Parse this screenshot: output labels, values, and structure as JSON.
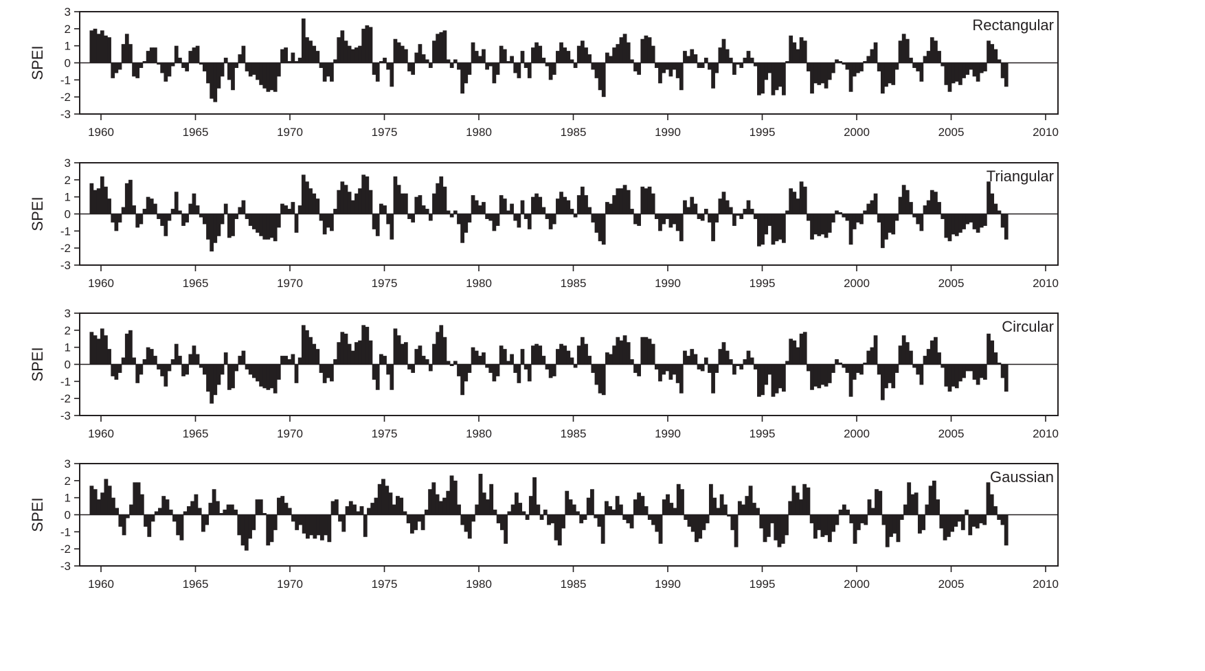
{
  "figure": {
    "ylabel": "SPEI",
    "yticks": [
      "3",
      "2",
      "1",
      "0",
      "-1",
      "-2",
      "-3"
    ],
    "xticks": [
      "1960",
      "1965",
      "1970",
      "1975",
      "1980",
      "1985",
      "1990",
      "1995",
      "2000",
      "2005",
      "2010"
    ],
    "colors": {
      "bars": "#231f20",
      "axes": "#231f20",
      "background": "#ffffff"
    }
  },
  "chart_data": [
    {
      "type": "bar",
      "title": "Rectangular",
      "xlabel": "",
      "ylabel": "SPEI",
      "ylim": [
        -3,
        3
      ],
      "xlim": [
        1959,
        2010.6
      ],
      "grid": false,
      "x_start": 1959.4,
      "x_end": 2008.0,
      "values": [
        1.9,
        2.0,
        1.7,
        1.9,
        1.6,
        1.5,
        -0.9,
        -0.6,
        -0.4,
        1.1,
        1.7,
        1.1,
        -0.8,
        -0.9,
        -0.3,
        0.1,
        0.7,
        0.9,
        0.9,
        -0.1,
        -0.6,
        -1.1,
        -0.8,
        -0.2,
        1.0,
        0.3,
        -0.3,
        -0.5,
        0.7,
        0.9,
        1.0,
        -0.1,
        -0.5,
        -1.2,
        -2.1,
        -2.3,
        -1.5,
        -0.8,
        0.3,
        -1.0,
        -1.6,
        -0.3,
        0.5,
        1.0,
        -0.5,
        -0.8,
        -0.7,
        -1.0,
        -1.3,
        -1.5,
        -1.7,
        -1.6,
        -1.7,
        -0.8,
        0.8,
        0.9,
        0.1,
        0.6,
        0.1,
        0.3,
        2.6,
        1.5,
        1.3,
        1.0,
        0.7,
        -0.3,
        -1.1,
        -0.8,
        -1.1,
        0.2,
        1.5,
        1.9,
        1.3,
        1.0,
        0.8,
        0.9,
        1.0,
        2.0,
        2.2,
        2.1,
        -0.7,
        -1.1,
        0.1,
        0.3,
        -0.4,
        -1.4,
        1.4,
        1.2,
        1.0,
        0.8,
        -0.5,
        -0.7,
        0.6,
        1.1,
        0.5,
        0.2,
        -0.3,
        1.3,
        1.7,
        1.8,
        1.9,
        0.2,
        -0.3,
        0.2,
        -0.4,
        -1.8,
        -1.2,
        -0.7,
        1.2,
        0.7,
        0.4,
        0.8,
        -0.4,
        -0.2,
        -1.2,
        -0.7,
        1.0,
        0.8,
        0.1,
        0.4,
        -0.6,
        -0.9,
        0.7,
        -0.3,
        -0.9,
        0.9,
        1.2,
        1.0,
        0.3,
        -0.2,
        -1.0,
        -0.7,
        0.7,
        1.2,
        0.9,
        0.7,
        0.2,
        -0.3,
        1.0,
        1.3,
        0.9,
        0.5,
        -0.4,
        -0.9,
        -1.6,
        -2.0,
        0.6,
        0.4,
        0.9,
        1.1,
        1.5,
        1.7,
        1.2,
        0.2,
        -0.5,
        -0.7,
        1.4,
        1.6,
        1.5,
        1.0,
        -0.3,
        -1.2,
        -0.6,
        -0.4,
        -0.8,
        -0.4,
        -0.9,
        -1.6,
        0.7,
        0.4,
        0.8,
        0.5,
        -0.3,
        -0.3,
        0.3,
        -0.4,
        -1.5,
        -0.6,
        0.9,
        1.4,
        0.8,
        0.3,
        -0.7,
        -0.1,
        -0.3,
        0.3,
        0.7,
        0.3,
        -0.2,
        -1.9,
        -1.8,
        -1.0,
        -0.6,
        -1.9,
        -1.6,
        -1.4,
        -1.9,
        0.1,
        1.6,
        1.2,
        0.8,
        1.5,
        1.3,
        -0.5,
        -1.8,
        -1.2,
        -1.3,
        -1.2,
        -1.5,
        -1.0,
        -0.6,
        0.2,
        0.1,
        -0.1,
        -0.4,
        -1.7,
        -0.8,
        -0.6,
        -0.5,
        0.1,
        0.4,
        0.8,
        1.2,
        -0.5,
        -1.8,
        -1.4,
        -1.2,
        -1.3,
        -0.4,
        1.3,
        1.7,
        1.4,
        0.3,
        -0.3,
        -0.5,
        -1.1,
        0.4,
        0.7,
        1.5,
        1.3,
        0.7,
        -0.2,
        -1.3,
        -1.7,
        -1.2,
        -1.1,
        -1.3,
        -0.9,
        -0.7,
        -0.4,
        -0.8,
        -1.1,
        -0.6,
        -0.5,
        1.3,
        1.1,
        0.8,
        0.2,
        -0.9,
        -1.4
      ]
    },
    {
      "type": "bar",
      "title": "Triangular",
      "xlabel": "",
      "ylabel": "SPEI",
      "ylim": [
        -3,
        3
      ],
      "xlim": [
        1959,
        2010.6
      ],
      "grid": false,
      "x_start": 1959.4,
      "x_end": 2008.0,
      "values": [
        1.8,
        1.4,
        1.5,
        2.2,
        1.6,
        0.9,
        -0.5,
        -1.0,
        -0.5,
        0.4,
        1.8,
        2.0,
        0.5,
        -0.8,
        -0.6,
        0.3,
        1.0,
        0.9,
        0.6,
        -0.3,
        -0.7,
        -1.3,
        -0.4,
        0.3,
        1.3,
        0.2,
        -0.7,
        -0.5,
        0.6,
        1.2,
        0.5,
        -0.2,
        -0.6,
        -1.5,
        -2.2,
        -1.7,
        -1.3,
        -0.6,
        0.6,
        -1.4,
        -1.3,
        -0.3,
        0.4,
        0.8,
        -0.3,
        -0.7,
        -0.9,
        -1.1,
        -1.3,
        -1.5,
        -1.5,
        -1.4,
        -1.6,
        -0.8,
        0.6,
        0.5,
        0.3,
        0.7,
        -1.1,
        0.5,
        2.3,
        1.9,
        1.5,
        1.2,
        0.9,
        -0.4,
        -1.2,
        -0.8,
        -1.0,
        0.3,
        1.4,
        1.9,
        1.7,
        1.3,
        0.8,
        1.2,
        1.5,
        2.3,
        2.2,
        1.4,
        -0.9,
        -1.3,
        0.6,
        0.5,
        -0.6,
        -1.5,
        2.2,
        1.7,
        1.2,
        1.2,
        -0.3,
        -0.5,
        1.0,
        1.1,
        0.5,
        0.3,
        -0.4,
        1.2,
        1.8,
        2.2,
        1.6,
        0.2,
        -0.2,
        0.2,
        -0.6,
        -1.7,
        -1.1,
        -0.5,
        1.1,
        0.8,
        0.5,
        0.7,
        -0.3,
        -0.4,
        -1.0,
        -0.7,
        1.1,
        0.9,
        0.2,
        0.6,
        -0.4,
        -0.8,
        0.8,
        -0.3,
        -0.9,
        1.0,
        1.2,
        1.0,
        0.4,
        -0.3,
        -0.9,
        -0.6,
        0.9,
        1.3,
        1.0,
        0.8,
        0.3,
        -0.2,
        1.1,
        1.6,
        1.1,
        0.4,
        -0.5,
        -1.1,
        -1.6,
        -1.8,
        0.7,
        0.6,
        1.1,
        1.5,
        1.5,
        1.7,
        1.4,
        0.3,
        -0.6,
        -0.7,
        1.6,
        1.5,
        1.6,
        1.2,
        -0.3,
        -1.0,
        -0.6,
        -0.3,
        -0.8,
        -0.6,
        -1.0,
        -1.6,
        0.8,
        0.4,
        1.0,
        0.6,
        -0.3,
        -0.4,
        0.3,
        -0.5,
        -1.6,
        -0.5,
        0.9,
        1.3,
        0.8,
        0.4,
        -0.7,
        -0.1,
        -0.3,
        0.3,
        0.8,
        0.3,
        -0.3,
        -1.9,
        -1.8,
        -1.2,
        -0.7,
        -1.8,
        -1.6,
        -1.5,
        -1.7,
        0.2,
        1.5,
        1.3,
        0.9,
        1.9,
        1.6,
        -0.4,
        -1.5,
        -1.2,
        -1.3,
        -1.2,
        -1.4,
        -1.1,
        -0.5,
        0.2,
        0.1,
        -0.2,
        -0.4,
        -1.8,
        -0.9,
        -0.5,
        -0.6,
        0.2,
        0.6,
        0.8,
        1.2,
        -0.5,
        -2.0,
        -1.5,
        -1.1,
        -1.2,
        -0.4,
        1.0,
        1.7,
        1.4,
        0.7,
        -0.2,
        -0.6,
        -1.0,
        0.5,
        0.8,
        1.4,
        1.3,
        0.7,
        -0.3,
        -1.4,
        -1.6,
        -1.2,
        -1.3,
        -1.1,
        -0.9,
        -0.6,
        -0.5,
        -0.9,
        -1.1,
        -0.8,
        -0.7,
        1.9,
        1.2,
        0.6,
        0.2,
        -0.8,
        -1.5
      ]
    },
    {
      "type": "bar",
      "title": "Circular",
      "xlabel": "",
      "ylabel": "SPEI",
      "ylim": [
        -3,
        3
      ],
      "xlim": [
        1959,
        2010.6
      ],
      "grid": false,
      "x_start": 1959.4,
      "x_end": 2008.0,
      "values": [
        1.9,
        1.7,
        1.5,
        2.1,
        1.7,
        0.9,
        -0.7,
        -0.9,
        -0.5,
        0.4,
        1.8,
        2.0,
        0.4,
        -1.1,
        -0.6,
        0.3,
        1.0,
        0.9,
        0.5,
        -0.3,
        -0.7,
        -1.3,
        -0.4,
        0.3,
        1.2,
        0.5,
        -0.7,
        -0.6,
        0.6,
        1.1,
        0.6,
        -0.2,
        -0.6,
        -1.6,
        -2.3,
        -1.8,
        -1.2,
        -0.6,
        0.7,
        -1.5,
        -1.4,
        -0.4,
        0.5,
        0.8,
        -0.3,
        -0.6,
        -0.8,
        -1.0,
        -1.3,
        -1.4,
        -1.5,
        -1.4,
        -1.7,
        -0.9,
        0.5,
        0.5,
        0.3,
        0.6,
        -1.1,
        0.4,
        2.3,
        2.0,
        1.6,
        1.2,
        0.9,
        -0.5,
        -1.1,
        -0.8,
        -1.0,
        0.3,
        1.3,
        1.9,
        1.8,
        1.2,
        0.8,
        1.3,
        1.4,
        2.3,
        2.2,
        1.4,
        -0.9,
        -1.5,
        0.6,
        0.5,
        -0.6,
        -1.5,
        2.1,
        1.7,
        1.2,
        1.3,
        -0.3,
        -0.5,
        0.9,
        1.1,
        0.5,
        0.3,
        -0.4,
        1.2,
        1.9,
        2.3,
        1.6,
        0.2,
        -0.1,
        0.2,
        -0.7,
        -1.8,
        -1.0,
        -0.5,
        1.0,
        0.8,
        0.5,
        0.7,
        -0.2,
        -0.5,
        -1.0,
        -0.7,
        1.1,
        0.9,
        0.2,
        0.6,
        -0.5,
        -1.1,
        0.9,
        -0.3,
        -1.0,
        1.1,
        1.2,
        1.1,
        0.5,
        -0.3,
        -0.8,
        -0.7,
        0.9,
        1.2,
        1.1,
        0.8,
        0.4,
        -0.2,
        1.1,
        1.6,
        1.2,
        0.5,
        -0.5,
        -1.2,
        -1.7,
        -1.8,
        0.7,
        0.6,
        1.1,
        1.6,
        1.4,
        1.7,
        1.3,
        0.3,
        -0.5,
        -0.7,
        1.6,
        1.6,
        1.5,
        1.2,
        -0.3,
        -1.0,
        -0.6,
        -0.4,
        -0.9,
        -0.6,
        -1.1,
        -1.7,
        0.8,
        0.5,
        0.9,
        0.6,
        -0.3,
        -0.4,
        0.4,
        -0.5,
        -1.7,
        -0.5,
        0.9,
        1.3,
        0.8,
        0.3,
        -0.6,
        -0.1,
        -0.3,
        0.3,
        0.8,
        0.4,
        -0.3,
        -1.9,
        -1.8,
        -1.2,
        -0.6,
        -1.9,
        -1.7,
        -1.4,
        -1.6,
        0.2,
        1.5,
        1.4,
        1.0,
        1.8,
        1.9,
        -0.4,
        -1.5,
        -1.3,
        -1.4,
        -1.2,
        -1.3,
        -1.1,
        -0.5,
        0.3,
        0.1,
        -0.2,
        -0.5,
        -1.9,
        -0.9,
        -0.5,
        -0.6,
        0.1,
        0.8,
        1.0,
        1.7,
        -0.6,
        -2.1,
        -1.4,
        -1.1,
        -1.4,
        -0.5,
        1.1,
        1.7,
        1.3,
        0.8,
        -0.2,
        -0.6,
        -1.2,
        0.5,
        0.9,
        1.4,
        1.6,
        0.7,
        -0.2,
        -1.3,
        -1.6,
        -1.3,
        -1.4,
        -1.0,
        -0.8,
        -0.4,
        -0.4,
        -0.9,
        -1.2,
        -0.8,
        -0.9,
        1.8,
        1.4,
        0.7,
        0.1,
        -0.8,
        -1.6
      ]
    },
    {
      "type": "bar",
      "title": "Gaussian",
      "xlabel": "",
      "ylabel": "SPEI",
      "ylim": [
        -3,
        3
      ],
      "xlim": [
        1959,
        2010.6
      ],
      "grid": false,
      "x_start": 1959.4,
      "x_end": 2008.0,
      "values": [
        1.7,
        1.5,
        0.9,
        1.3,
        2.1,
        1.7,
        1.0,
        0.4,
        -0.7,
        -1.2,
        -0.2,
        0.6,
        1.9,
        1.9,
        1.2,
        -0.7,
        -1.3,
        -0.4,
        0.2,
        0.4,
        1.1,
        0.9,
        0.3,
        -0.4,
        -1.2,
        -1.5,
        0.2,
        0.5,
        0.8,
        1.2,
        0.4,
        -1.0,
        -0.6,
        0.7,
        1.5,
        0.8,
        0.1,
        0.3,
        0.6,
        0.6,
        0.3,
        -1.2,
        -1.8,
        -2.1,
        -1.4,
        -0.9,
        0.9,
        0.9,
        0.1,
        -1.8,
        -1.6,
        -0.9,
        1.0,
        1.1,
        0.7,
        0.4,
        -0.4,
        -0.9,
        -0.6,
        -1.1,
        -1.4,
        -1.2,
        -1.4,
        -1.2,
        -1.5,
        -1.2,
        -1.6,
        0.8,
        0.9,
        -0.4,
        -1.0,
        0.5,
        0.8,
        0.6,
        0.2,
        0.5,
        -1.3,
        0.4,
        0.7,
        1.0,
        1.8,
        2.1,
        1.7,
        1.3,
        0.6,
        1.1,
        1.0,
        0.2,
        -0.5,
        -1.1,
        -0.9,
        -0.4,
        -0.9,
        0.3,
        1.5,
        1.9,
        1.2,
        0.8,
        1.0,
        1.4,
        2.3,
        2.0,
        0.6,
        -0.6,
        -1.0,
        -1.4,
        -0.4,
        0.6,
        2.4,
        1.3,
        0.9,
        1.8,
        0.3,
        -0.5,
        -0.9,
        -1.7,
        0.2,
        0.6,
        1.3,
        0.7,
        0.2,
        -0.3,
        1.1,
        2.2,
        0.6,
        -0.3,
        0.3,
        -0.6,
        -0.5,
        -1.5,
        -1.8,
        -0.8,
        1.4,
        0.9,
        0.6,
        0.2,
        -0.5,
        -0.3,
        1.0,
        1.5,
        -0.2,
        -0.7,
        -1.7,
        0.8,
        0.5,
        0.3,
        1.1,
        0.6,
        -0.3,
        -0.5,
        -0.8,
        0.9,
        1.3,
        1.1,
        0.5,
        -0.3,
        -0.6,
        -1.0,
        -1.7,
        0.9,
        1.2,
        0.7,
        0.4,
        1.8,
        1.5,
        -0.3,
        -0.7,
        -1.0,
        -1.6,
        -1.4,
        -0.9,
        -0.5,
        1.8,
        1.0,
        0.4,
        1.2,
        0.6,
        -0.1,
        -0.9,
        -1.9,
        0.8,
        0.6,
        1.1,
        1.7,
        0.7,
        0.4,
        -0.8,
        -1.6,
        -1.3,
        -0.5,
        -1.5,
        -1.9,
        -1.7,
        -1.2,
        0.8,
        1.7,
        1.3,
        0.9,
        1.8,
        1.6,
        -0.5,
        -1.4,
        -0.9,
        -1.3,
        -1.2,
        -1.6,
        -1.0,
        -0.6,
        0.3,
        0.6,
        0.3,
        -0.5,
        -1.7,
        -0.9,
        -0.5,
        -0.6,
        0.9,
        0.4,
        1.5,
        1.4,
        -0.6,
        -1.9,
        -1.3,
        -1.1,
        -1.6,
        -0.3,
        0.6,
        1.9,
        1.2,
        1.3,
        -1.1,
        -0.9,
        0.6,
        1.7,
        2.0,
        0.9,
        -0.8,
        -1.5,
        -1.3,
        -1.0,
        -0.7,
        -0.4,
        -0.9,
        0.3,
        -1.2,
        -0.7,
        -0.8,
        -0.5,
        -0.6,
        1.9,
        1.2,
        0.5,
        -0.3,
        -0.6,
        -1.8
      ]
    }
  ]
}
